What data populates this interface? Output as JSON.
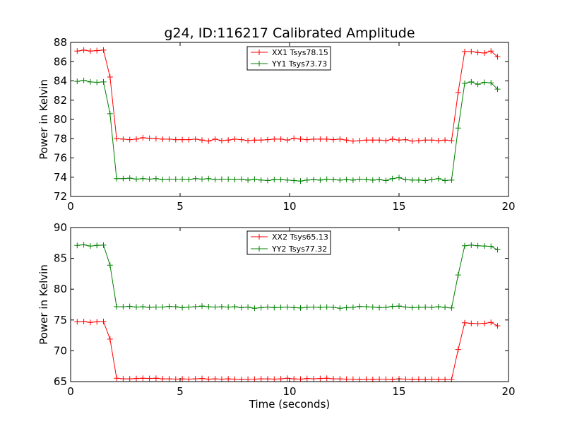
{
  "chart_data": [
    {
      "type": "line",
      "title": "g24, ID:116217 Calibrated Amplitude",
      "xlabel": "",
      "ylabel": "Power in Kelvin",
      "xlim": [
        0,
        20
      ],
      "ylim": [
        72,
        88
      ],
      "xticks": [
        "0",
        "5",
        "10",
        "15",
        "20"
      ],
      "yticks": [
        "72",
        "74",
        "76",
        "78",
        "80",
        "82",
        "84",
        "86",
        "88"
      ],
      "grid": false,
      "legend": "top-center",
      "x": [
        0.3,
        0.6,
        0.9,
        1.2,
        1.5,
        1.8,
        2.1,
        2.4,
        2.7,
        3.0,
        3.3,
        3.6,
        3.9,
        4.2,
        4.5,
        4.8,
        5.1,
        5.4,
        5.7,
        6.0,
        6.3,
        6.6,
        6.9,
        7.2,
        7.5,
        7.8,
        8.1,
        8.4,
        8.7,
        9.0,
        9.3,
        9.6,
        9.9,
        10.2,
        10.5,
        10.8,
        11.1,
        11.4,
        11.7,
        12.0,
        12.3,
        12.6,
        12.9,
        13.2,
        13.5,
        13.8,
        14.1,
        14.4,
        14.7,
        15.0,
        15.3,
        15.6,
        15.9,
        16.2,
        16.5,
        16.8,
        17.1,
        17.4,
        17.7,
        18.0,
        18.3,
        18.6,
        18.9,
        19.2,
        19.5
      ],
      "series": [
        {
          "name": "XX1 Tsys78.15",
          "color": "#ff0000",
          "values": [
            87.1,
            87.2,
            87.1,
            87.15,
            87.2,
            84.4,
            78.0,
            77.95,
            77.9,
            77.95,
            78.1,
            78.05,
            78.0,
            77.95,
            77.95,
            77.9,
            77.9,
            77.9,
            77.95,
            77.85,
            77.75,
            77.95,
            77.8,
            77.85,
            77.95,
            77.9,
            77.8,
            77.85,
            77.85,
            77.9,
            77.95,
            77.95,
            77.85,
            78.05,
            77.95,
            77.9,
            77.95,
            77.95,
            77.95,
            77.9,
            77.95,
            77.85,
            77.75,
            77.8,
            77.85,
            77.85,
            77.85,
            77.8,
            77.95,
            77.85,
            77.9,
            77.75,
            77.8,
            77.85,
            77.85,
            77.8,
            77.85,
            77.8,
            82.8,
            87.05,
            87.05,
            86.95,
            86.9,
            87.1,
            86.5
          ]
        },
        {
          "name": "YY1 Tsys73.73",
          "color": "#008000",
          "values": [
            83.95,
            84.05,
            83.9,
            83.85,
            83.9,
            80.6,
            73.85,
            73.85,
            73.9,
            73.8,
            73.85,
            73.8,
            73.85,
            73.75,
            73.8,
            73.8,
            73.8,
            73.75,
            73.85,
            73.8,
            73.85,
            73.75,
            73.8,
            73.8,
            73.75,
            73.8,
            73.7,
            73.8,
            73.7,
            73.65,
            73.75,
            73.75,
            73.7,
            73.65,
            73.6,
            73.7,
            73.75,
            73.7,
            73.8,
            73.75,
            73.7,
            73.75,
            73.7,
            73.8,
            73.75,
            73.7,
            73.75,
            73.65,
            73.85,
            73.95,
            73.75,
            73.7,
            73.7,
            73.65,
            73.75,
            73.85,
            73.65,
            73.7,
            79.1,
            83.75,
            83.9,
            83.65,
            83.85,
            83.8,
            83.15
          ]
        }
      ]
    },
    {
      "type": "line",
      "title": "",
      "xlabel": "Time (seconds)",
      "ylabel": "Power in Kelvin",
      "xlim": [
        0,
        20
      ],
      "ylim": [
        65,
        90
      ],
      "xticks": [
        "0",
        "5",
        "10",
        "15",
        "20"
      ],
      "yticks": [
        "65",
        "70",
        "75",
        "80",
        "85",
        "90"
      ],
      "grid": false,
      "legend": "top-center",
      "x": [
        0.3,
        0.6,
        0.9,
        1.2,
        1.5,
        1.8,
        2.1,
        2.4,
        2.7,
        3.0,
        3.3,
        3.6,
        3.9,
        4.2,
        4.5,
        4.8,
        5.1,
        5.4,
        5.7,
        6.0,
        6.3,
        6.6,
        6.9,
        7.2,
        7.5,
        7.8,
        8.1,
        8.4,
        8.7,
        9.0,
        9.3,
        9.6,
        9.9,
        10.2,
        10.5,
        10.8,
        11.1,
        11.4,
        11.7,
        12.0,
        12.3,
        12.6,
        12.9,
        13.2,
        13.5,
        13.8,
        14.1,
        14.4,
        14.7,
        15.0,
        15.3,
        15.6,
        15.9,
        16.2,
        16.5,
        16.8,
        17.1,
        17.4,
        17.7,
        18.0,
        18.3,
        18.6,
        18.9,
        19.2,
        19.5
      ],
      "series": [
        {
          "name": "XX2 Tsys65.13",
          "color": "#ff0000",
          "values": [
            74.7,
            74.75,
            74.6,
            74.7,
            74.75,
            71.9,
            65.55,
            65.45,
            65.45,
            65.5,
            65.55,
            65.5,
            65.55,
            65.45,
            65.45,
            65.4,
            65.45,
            65.4,
            65.45,
            65.5,
            65.4,
            65.45,
            65.4,
            65.45,
            65.4,
            65.35,
            65.4,
            65.4,
            65.45,
            65.45,
            65.4,
            65.45,
            65.55,
            65.45,
            65.4,
            65.5,
            65.45,
            65.5,
            65.55,
            65.45,
            65.45,
            65.4,
            65.4,
            65.35,
            65.4,
            65.35,
            65.4,
            65.4,
            65.35,
            65.45,
            65.4,
            65.35,
            65.4,
            65.35,
            65.4,
            65.35,
            65.35,
            65.35,
            70.2,
            74.55,
            74.45,
            74.4,
            74.45,
            74.6,
            74.05
          ]
        },
        {
          "name": "YY2 Tsys77.32",
          "color": "#008000",
          "values": [
            87.1,
            87.2,
            87.0,
            87.1,
            87.15,
            83.9,
            77.15,
            77.15,
            77.2,
            77.1,
            77.15,
            77.05,
            77.1,
            77.1,
            77.2,
            77.15,
            77.0,
            77.1,
            77.15,
            77.25,
            77.15,
            77.1,
            77.15,
            77.1,
            77.15,
            77.0,
            77.1,
            76.9,
            77.0,
            77.1,
            77.0,
            77.05,
            77.1,
            77.0,
            76.95,
            77.05,
            77.1,
            77.05,
            77.1,
            77.05,
            76.9,
            77.0,
            77.05,
            77.2,
            77.15,
            77.1,
            77.0,
            77.05,
            77.2,
            77.25,
            77.1,
            77.0,
            77.05,
            77.1,
            77.05,
            77.15,
            77.05,
            76.95,
            82.3,
            87.05,
            87.15,
            87.05,
            87.0,
            86.95,
            86.4
          ]
        }
      ]
    }
  ]
}
